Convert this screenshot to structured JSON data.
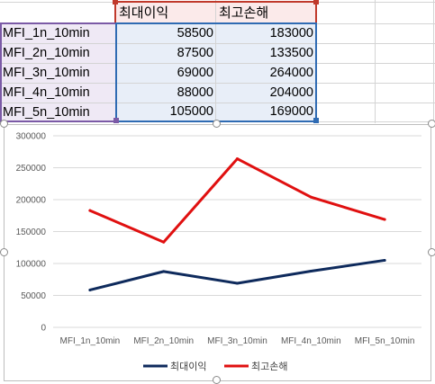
{
  "sheet": {
    "headers": [
      "최대이익",
      "최고손해"
    ],
    "rows": [
      {
        "label": "MFI_1n_10min",
        "profit": "58500",
        "loss": "183000"
      },
      {
        "label": "MFI_2n_10min",
        "profit": "87500",
        "loss": "133500"
      },
      {
        "label": "MFI_3n_10min",
        "profit": "69000",
        "loss": "264000"
      },
      {
        "label": "MFI_4n_10min",
        "profit": "88000",
        "loss": "204000"
      },
      {
        "label": "MFI_5n_10min",
        "profit": "105000",
        "loss": "169000"
      }
    ]
  },
  "chart_data": {
    "type": "line",
    "categories": [
      "MFI_1n_10min",
      "MFI_2n_10min",
      "MFI_3n_10min",
      "MFI_4n_10min",
      "MFI_5n_10min"
    ],
    "series": [
      {
        "name": "최대이익",
        "values": [
          58500,
          87500,
          69000,
          88000,
          105000
        ],
        "color": "#0e2a5c"
      },
      {
        "name": "최고손해",
        "values": [
          183000,
          133500,
          264000,
          204000,
          169000
        ],
        "color": "#e01010"
      }
    ],
    "ylim": [
      0,
      300000
    ],
    "yticks": [
      0,
      50000,
      100000,
      150000,
      200000,
      250000,
      300000
    ],
    "ytick_labels": [
      "0",
      "50000",
      "100000",
      "150000",
      "200000",
      "250000",
      "300000"
    ],
    "title": "",
    "xlabel": "",
    "ylabel": "",
    "grid": true,
    "legend": "bottom"
  }
}
